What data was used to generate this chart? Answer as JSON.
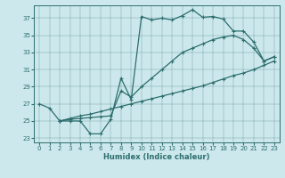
{
  "xlabel": "Humidex (Indice chaleur)",
  "bg_color": "#cce8ec",
  "line_color": "#2d6e6e",
  "xlim": [
    -0.5,
    23.5
  ],
  "ylim": [
    22.5,
    38.5
  ],
  "yticks": [
    23,
    25,
    27,
    29,
    31,
    33,
    35,
    37
  ],
  "xticks": [
    0,
    1,
    2,
    3,
    4,
    5,
    6,
    7,
    8,
    9,
    10,
    11,
    12,
    13,
    14,
    15,
    16,
    17,
    18,
    19,
    20,
    21,
    22,
    23
  ],
  "line1_x": [
    0,
    1,
    2,
    3,
    4,
    5,
    6,
    7,
    8,
    9,
    10,
    11,
    12,
    13,
    14,
    15,
    16,
    17,
    18,
    19,
    20,
    21,
    22,
    23
  ],
  "line1_y": [
    27.0,
    26.5,
    25.0,
    25.0,
    25.0,
    23.5,
    23.5,
    25.2,
    30.0,
    27.5,
    37.2,
    36.8,
    37.0,
    36.8,
    37.3,
    38.0,
    37.1,
    37.2,
    36.9,
    35.5,
    35.5,
    34.2,
    32.0,
    32.5
  ],
  "line2_x": [
    2,
    3,
    4,
    5,
    6,
    7,
    8,
    9,
    10,
    11,
    12,
    13,
    14,
    15,
    16,
    17,
    18,
    19,
    20,
    21,
    22,
    23
  ],
  "line2_y": [
    25.0,
    25.2,
    25.3,
    25.4,
    25.5,
    25.6,
    28.5,
    27.8,
    29.0,
    30.0,
    31.0,
    32.0,
    33.0,
    33.5,
    34.0,
    34.5,
    34.8,
    35.0,
    34.5,
    33.5,
    32.0,
    32.5
  ],
  "line3_x": [
    2,
    3,
    4,
    5,
    6,
    7,
    8,
    9,
    10,
    11,
    12,
    13,
    14,
    15,
    16,
    17,
    18,
    19,
    20,
    21,
    22,
    23
  ],
  "line3_y": [
    25.0,
    25.3,
    25.6,
    25.8,
    26.1,
    26.4,
    26.7,
    27.0,
    27.3,
    27.6,
    27.9,
    28.2,
    28.5,
    28.8,
    29.1,
    29.5,
    29.9,
    30.3,
    30.6,
    31.0,
    31.5,
    32.0
  ]
}
